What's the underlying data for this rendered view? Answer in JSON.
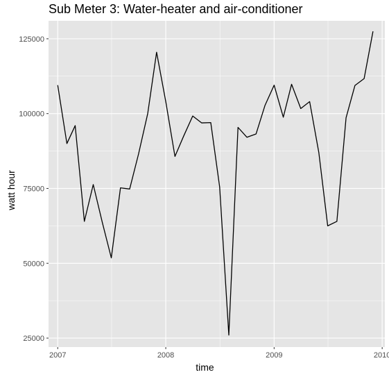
{
  "chart_data": {
    "type": "line",
    "title": "Sub Meter 3: Water-heater and air-conditioner",
    "xlabel": "time",
    "ylabel": "watt hour",
    "x_ticks": [
      "2007",
      "2008",
      "2009",
      "2010"
    ],
    "y_ticks": [
      "25000",
      "50000",
      "75000",
      "100000",
      "125000"
    ],
    "xlim": [
      "2006-12-01",
      "2010-01-10"
    ],
    "ylim": [
      22000,
      131000
    ],
    "grid": true,
    "legend": "none",
    "colors": {
      "panel": "#e5e5e5",
      "grid": "#ffffff",
      "line": "#000000",
      "tick_text": "#4d4d4d"
    },
    "series": [
      {
        "x": [
          "2007-01-01",
          "2007-02-01",
          "2007-03-01",
          "2007-04-01",
          "2007-05-01",
          "2007-06-01",
          "2007-07-01",
          "2007-08-01",
          "2007-09-01",
          "2007-10-01",
          "2007-11-01",
          "2007-12-01",
          "2008-01-01",
          "2008-02-01",
          "2008-03-01",
          "2008-04-01",
          "2008-05-01",
          "2008-06-01",
          "2008-07-01",
          "2008-08-01",
          "2008-09-01",
          "2008-10-01",
          "2008-11-01",
          "2008-12-01",
          "2009-01-01",
          "2009-02-01",
          "2009-03-01",
          "2009-04-01",
          "2009-05-01",
          "2009-06-01",
          "2009-07-01",
          "2009-08-01",
          "2009-09-01",
          "2009-10-01",
          "2009-11-01",
          "2009-12-01"
        ],
        "values": [
          109500,
          90000,
          96000,
          64000,
          76300,
          63500,
          51800,
          75200,
          74800,
          86500,
          100000,
          120500,
          104000,
          85700,
          92400,
          99200,
          96900,
          97000,
          75500,
          26000,
          95400,
          92100,
          93200,
          102700,
          109500,
          98800,
          109800,
          101700,
          104000,
          87000,
          62500,
          64000,
          98600,
          109400,
          111700,
          127500
        ]
      }
    ]
  }
}
